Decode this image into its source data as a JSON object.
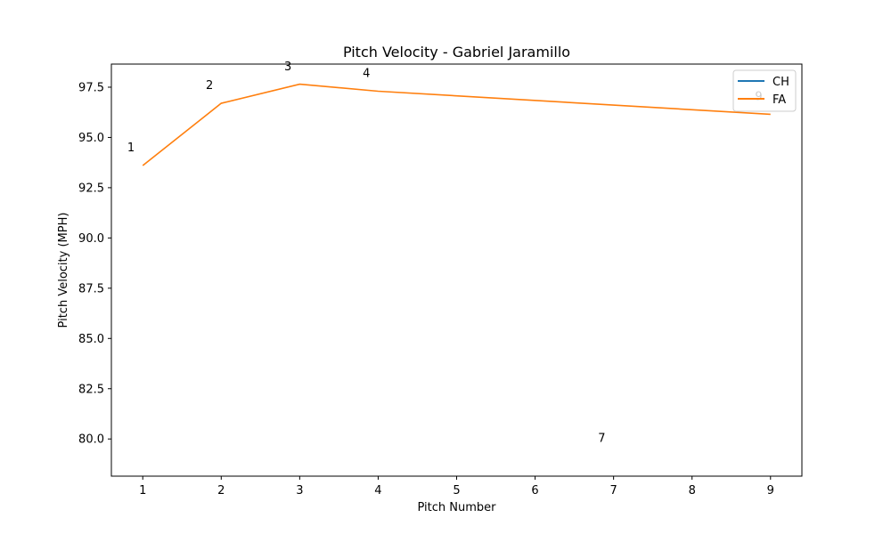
{
  "chart_data": {
    "type": "line",
    "title": "Pitch Velocity - Gabriel Jaramillo",
    "xlabel": "Pitch Number",
    "ylabel": "Pitch Velocity (MPH)",
    "xlim": [
      0.6,
      9.4
    ],
    "ylim": [
      78.15,
      98.65
    ],
    "xticks": [
      "1",
      "2",
      "3",
      "4",
      "5",
      "6",
      "7",
      "8",
      "9"
    ],
    "yticks": [
      "80.0",
      "82.5",
      "85.0",
      "87.5",
      "90.0",
      "92.5",
      "95.0",
      "97.5"
    ],
    "grid": false,
    "legend_position": "top-right",
    "series": [
      {
        "name": "CH",
        "color": "#1f77b4",
        "x": [],
        "y": []
      },
      {
        "name": "FA",
        "color": "#ff7f0e",
        "x": [
          1,
          2,
          3,
          4,
          9
        ],
        "y": [
          93.6,
          96.7,
          97.65,
          97.3,
          96.15
        ]
      }
    ],
    "annotations": [
      {
        "text": "1",
        "x": 0.85,
        "y": 94.3
      },
      {
        "text": "2",
        "x": 1.85,
        "y": 97.4
      },
      {
        "text": "3",
        "x": 2.85,
        "y": 98.35
      },
      {
        "text": "4",
        "x": 3.85,
        "y": 98.0
      },
      {
        "text": "7",
        "x": 6.85,
        "y": 79.85
      },
      {
        "text": "9",
        "x": 8.85,
        "y": 96.85
      }
    ]
  }
}
